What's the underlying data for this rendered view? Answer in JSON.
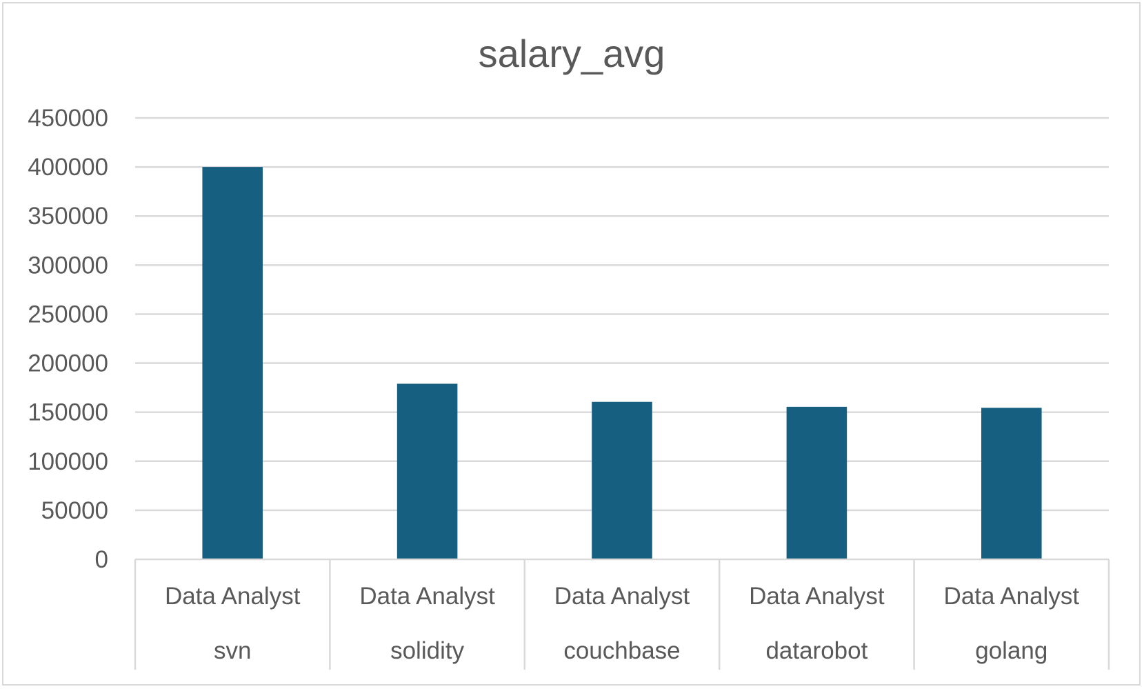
{
  "chart_data": {
    "type": "bar",
    "title": "salary_avg",
    "categories": [
      [
        "Data Analyst",
        "svn"
      ],
      [
        "Data Analyst",
        "solidity"
      ],
      [
        "Data Analyst",
        "couchbase"
      ],
      [
        "Data Analyst",
        "datarobot"
      ],
      [
        "Data Analyst",
        "golang"
      ]
    ],
    "values": [
      400000,
      179000,
      160515,
      155486,
      154500
    ],
    "ylim": [
      0,
      450000
    ],
    "yticks": [
      "0",
      "50000",
      "100000",
      "150000",
      "200000",
      "250000",
      "300000",
      "350000",
      "400000",
      "450000"
    ],
    "grid": true,
    "legend": "none",
    "bar_color": "#175f81",
    "xlabel": "",
    "ylabel": ""
  }
}
